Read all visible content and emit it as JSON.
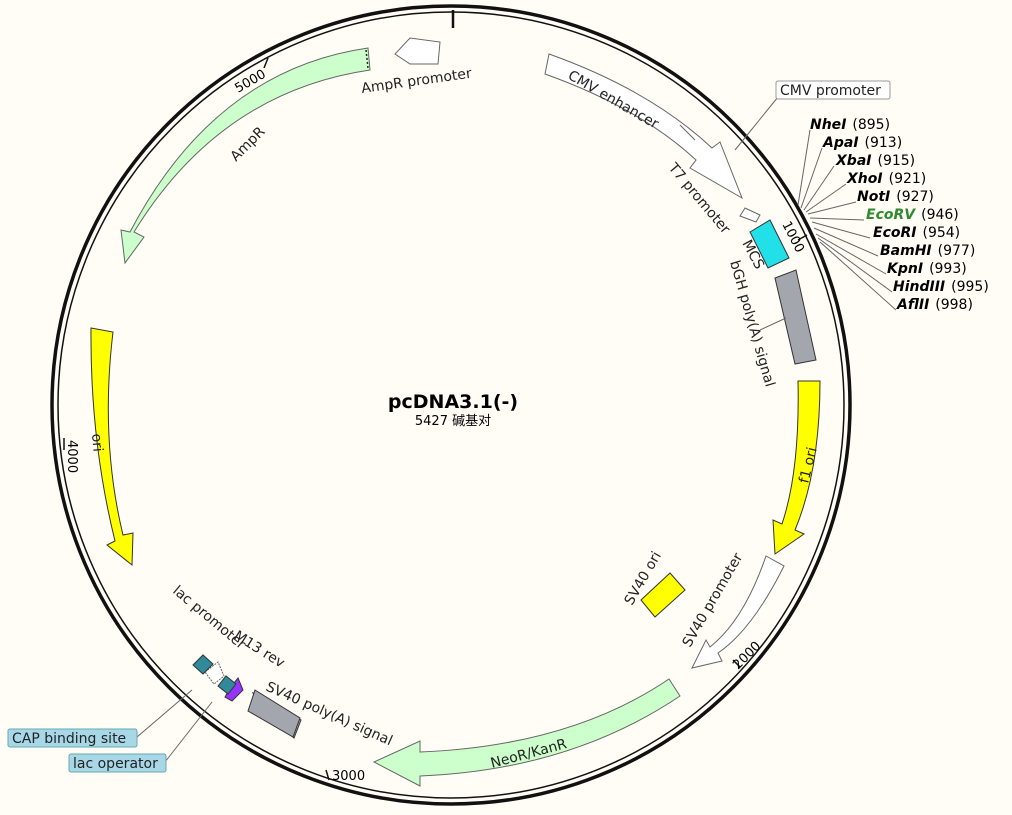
{
  "plasmid": {
    "name": "pcDNA3.1(-)",
    "length_label": "5427 碱基对",
    "length_bp": 5427
  },
  "ticks": [
    {
      "bp": 1000,
      "label": "1000"
    },
    {
      "bp": 2000,
      "label": "2000"
    },
    {
      "bp": 3000,
      "label": "3000"
    },
    {
      "bp": 4000,
      "label": "4000"
    },
    {
      "bp": 5000,
      "label": "5000"
    }
  ],
  "features": [
    {
      "id": "cmv-enhancer",
      "label": "CMV enhancer",
      "color": "#ffffff"
    },
    {
      "id": "cmv-promoter",
      "label": "CMV promoter",
      "color": "#ffffff"
    },
    {
      "id": "t7-promoter",
      "label": "T7 promoter",
      "color": "#ffffff"
    },
    {
      "id": "mcs",
      "label": "MCS",
      "color": "#22e0e8"
    },
    {
      "id": "bgh-polya",
      "label": "bGH poly(A) signal",
      "color": "#a3a7ad"
    },
    {
      "id": "f1-ori",
      "label": "f1 ori",
      "color": "#ffff00"
    },
    {
      "id": "sv40-promoter",
      "label": "SV40 promoter",
      "color": "#ffffff"
    },
    {
      "id": "sv40-ori",
      "label": "SV40 ori",
      "color": "#ffff00"
    },
    {
      "id": "neor-kanr",
      "label": "NeoR/KanR",
      "color": "#ccffcc"
    },
    {
      "id": "sv40-polya",
      "label": "SV40 poly(A) signal",
      "color": "#a3a7ad"
    },
    {
      "id": "m13-rev",
      "label": "M13 rev",
      "color": "#9933ff"
    },
    {
      "id": "lac-operator",
      "label": "lac operator",
      "color": "#2f8a9b"
    },
    {
      "id": "lac-promoter",
      "label": "lac promoter",
      "color": "#ffffff"
    },
    {
      "id": "cap-binding-site",
      "label": "CAP binding site",
      "color": "#2f8a9b"
    },
    {
      "id": "ori",
      "label": "ori",
      "color": "#ffff00"
    },
    {
      "id": "ampr",
      "label": "AmpR",
      "color": "#ccffcc"
    },
    {
      "id": "ampr-promoter",
      "label": "AmpR promoter",
      "color": "#ffffff"
    }
  ],
  "restriction_sites": [
    {
      "prefix": "Nhe",
      "suffix": "I",
      "position": "(895)",
      "highlight": false
    },
    {
      "prefix": "Apa",
      "suffix": "I",
      "position": "(913)",
      "highlight": false
    },
    {
      "prefix": "Xba",
      "suffix": "I",
      "position": "(915)",
      "highlight": false
    },
    {
      "prefix": "Xho",
      "suffix": "I",
      "position": "(921)",
      "highlight": false
    },
    {
      "prefix": "Not",
      "suffix": "I",
      "position": "(927)",
      "highlight": false
    },
    {
      "prefix": "Eco",
      "suffix": "RV",
      "position": "(946)",
      "highlight": true
    },
    {
      "prefix": "Eco",
      "suffix": "RI",
      "position": "(954)",
      "highlight": false
    },
    {
      "prefix": "Bam",
      "suffix": "HI",
      "position": "(977)",
      "highlight": false
    },
    {
      "prefix": "Kpn",
      "suffix": "I",
      "position": "(993)",
      "highlight": false
    },
    {
      "prefix": "Hin",
      "suffix": "dIII",
      "position": "(995)",
      "highlight": false
    },
    {
      "prefix": "Afl",
      "suffix": "II",
      "position": "(998)",
      "highlight": false
    }
  ],
  "colors": {
    "backbone": "#111111",
    "highlight_site": "#2e8b2e",
    "label_box": "#a8d8e8"
  }
}
